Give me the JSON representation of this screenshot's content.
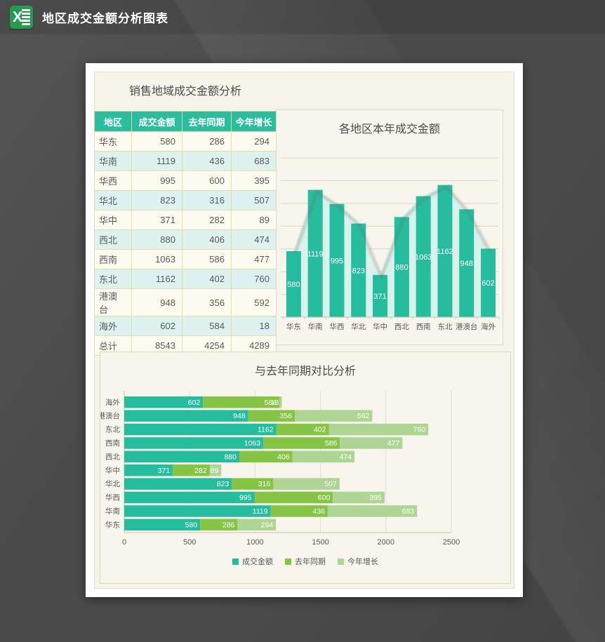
{
  "window": {
    "title": "地区成交金额分析图表",
    "app_icon_letter": "X"
  },
  "table": {
    "title": "销售地域成交金额分析",
    "columns": [
      "地区",
      "成交金额",
      "去年同期",
      "今年增长"
    ],
    "rows": [
      [
        "华东",
        580,
        286,
        294
      ],
      [
        "华南",
        1119,
        436,
        683
      ],
      [
        "华西",
        995,
        600,
        395
      ],
      [
        "华北",
        823,
        316,
        507
      ],
      [
        "华中",
        371,
        282,
        89
      ],
      [
        "西北",
        880,
        406,
        474
      ],
      [
        "西南",
        1063,
        586,
        477
      ],
      [
        "东北",
        1162,
        402,
        760
      ],
      [
        "港澳台",
        948,
        356,
        592
      ],
      [
        "海外",
        602,
        584,
        18
      ],
      [
        "总计",
        8543,
        4254,
        4289
      ]
    ]
  },
  "chart_data": [
    {
      "type": "bar",
      "title": "各地区本年成交金额",
      "categories": [
        "华东",
        "华南",
        "华西",
        "华北",
        "华中",
        "西北",
        "西南",
        "东北",
        "港澳台",
        "海外"
      ],
      "series": [
        {
          "name": "成交金额",
          "values": [
            580,
            1119,
            995,
            823,
            371,
            880,
            1063,
            1162,
            948,
            602
          ]
        }
      ],
      "ylim": [
        0,
        1400
      ],
      "grid_step": 200,
      "grid": true,
      "legend": false,
      "overlay_area_of_same_values": true,
      "data_label_style": "white-centered"
    },
    {
      "type": "stacked-bar-horizontal",
      "title": "与去年同期对比分析",
      "categories_top_to_bottom": [
        "海外",
        "港澳台",
        "东北",
        "西南",
        "西北",
        "华中",
        "华北",
        "华西",
        "华南",
        "华东"
      ],
      "series": [
        {
          "name": "成交金额",
          "values": [
            602,
            948,
            1162,
            1063,
            880,
            371,
            823,
            995,
            1119,
            580
          ]
        },
        {
          "name": "去年同期",
          "values": [
            584,
            356,
            402,
            586,
            406,
            282,
            316,
            600,
            436,
            286
          ]
        },
        {
          "name": "今年增长",
          "values": [
            18,
            592,
            760,
            477,
            474,
            89,
            507,
            395,
            683,
            294
          ]
        }
      ],
      "xlim": [
        0,
        2500
      ],
      "xticks": [
        0,
        500,
        1000,
        1500,
        2000,
        2500
      ],
      "grid": true,
      "legend_position": "bottom",
      "data_label_style": "white-inside-end"
    }
  ],
  "colors": {
    "page_bg": "#4b4b4b",
    "paper_bg": "#ffffff",
    "canvas_bg": "#f6f3e8",
    "panel_bg": "#f8f5ec",
    "panel_border": "#ddd8c6",
    "excel_green": "#259b50",
    "accent_teal": "#25bd9e",
    "green": "#85c445",
    "light_green": "#aed593",
    "area_fill": "#d9f2ec",
    "table_header_bg": "#2abda0",
    "row_cream": "#fdfcf1",
    "row_cyan": "#def3ef",
    "table_border": "#e2daa2",
    "grid_line": "#dbd6c4",
    "grid_line_vertical": "#e4e1d3",
    "axis_line": "#c6c2b0",
    "text_gray": "#595959",
    "title_gray": "#4c4c4c"
  }
}
